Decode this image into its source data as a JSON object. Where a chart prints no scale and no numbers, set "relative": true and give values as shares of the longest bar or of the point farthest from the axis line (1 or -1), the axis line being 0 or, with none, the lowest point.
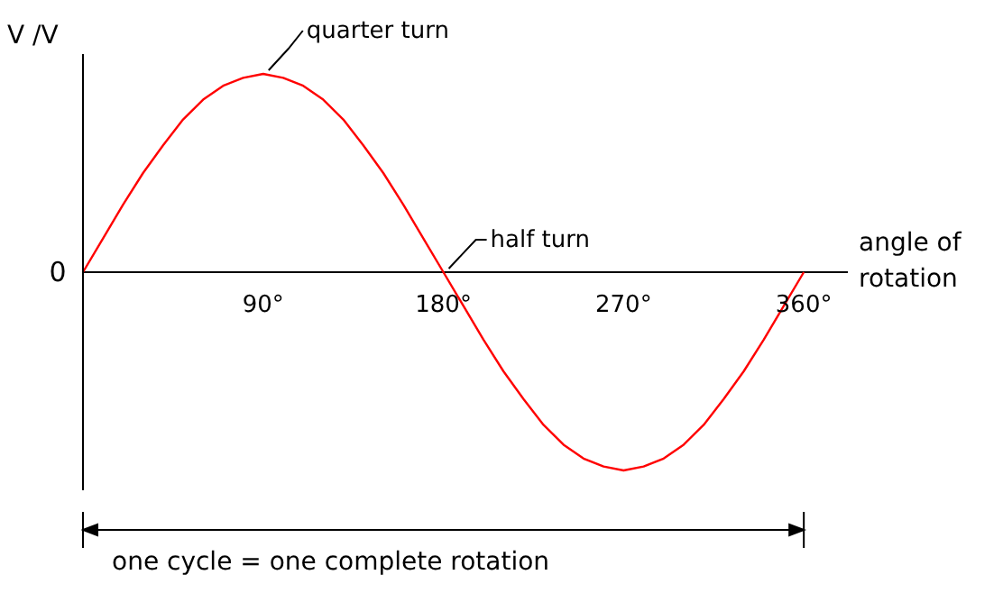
{
  "chart_data": {
    "type": "line",
    "relative": true,
    "xlabel": "angle of rotation",
    "ylabel": "V /V",
    "x": [
      0,
      10,
      20,
      30,
      40,
      50,
      60,
      70,
      80,
      90,
      100,
      110,
      120,
      130,
      140,
      150,
      160,
      170,
      180,
      190,
      200,
      210,
      220,
      230,
      240,
      250,
      260,
      270,
      280,
      290,
      300,
      310,
      320,
      330,
      340,
      350,
      360
    ],
    "series": [
      {
        "color": "#ff0000",
        "values": [
          0,
          0.17,
          0.34,
          0.5,
          0.64,
          0.77,
          0.87,
          0.94,
          0.98,
          1,
          0.98,
          0.94,
          0.87,
          0.77,
          0.64,
          0.5,
          0.34,
          0.17,
          0,
          -0.17,
          -0.34,
          -0.5,
          -0.64,
          -0.77,
          -0.87,
          -0.94,
          -0.98,
          -1,
          -0.98,
          -0.94,
          -0.87,
          -0.77,
          -0.64,
          -0.5,
          -0.34,
          -0.17,
          0
        ]
      }
    ],
    "xlim": [
      0,
      382
    ],
    "xticks": [
      {
        "value": 90,
        "label": "90°"
      },
      {
        "value": 180,
        "label": "180°"
      },
      {
        "value": 270,
        "label": "270°"
      },
      {
        "value": 360,
        "label": "360°"
      }
    ],
    "annotations": [
      {
        "text": "0",
        "x": 0,
        "y": 0
      },
      {
        "text": "quarter turn",
        "x": 90,
        "y": 1
      },
      {
        "text": "half turn",
        "x": 180,
        "y": 0
      },
      "one cycle = one complete rotation"
    ],
    "grid": false,
    "marker": "none",
    "line_style": "solid"
  }
}
